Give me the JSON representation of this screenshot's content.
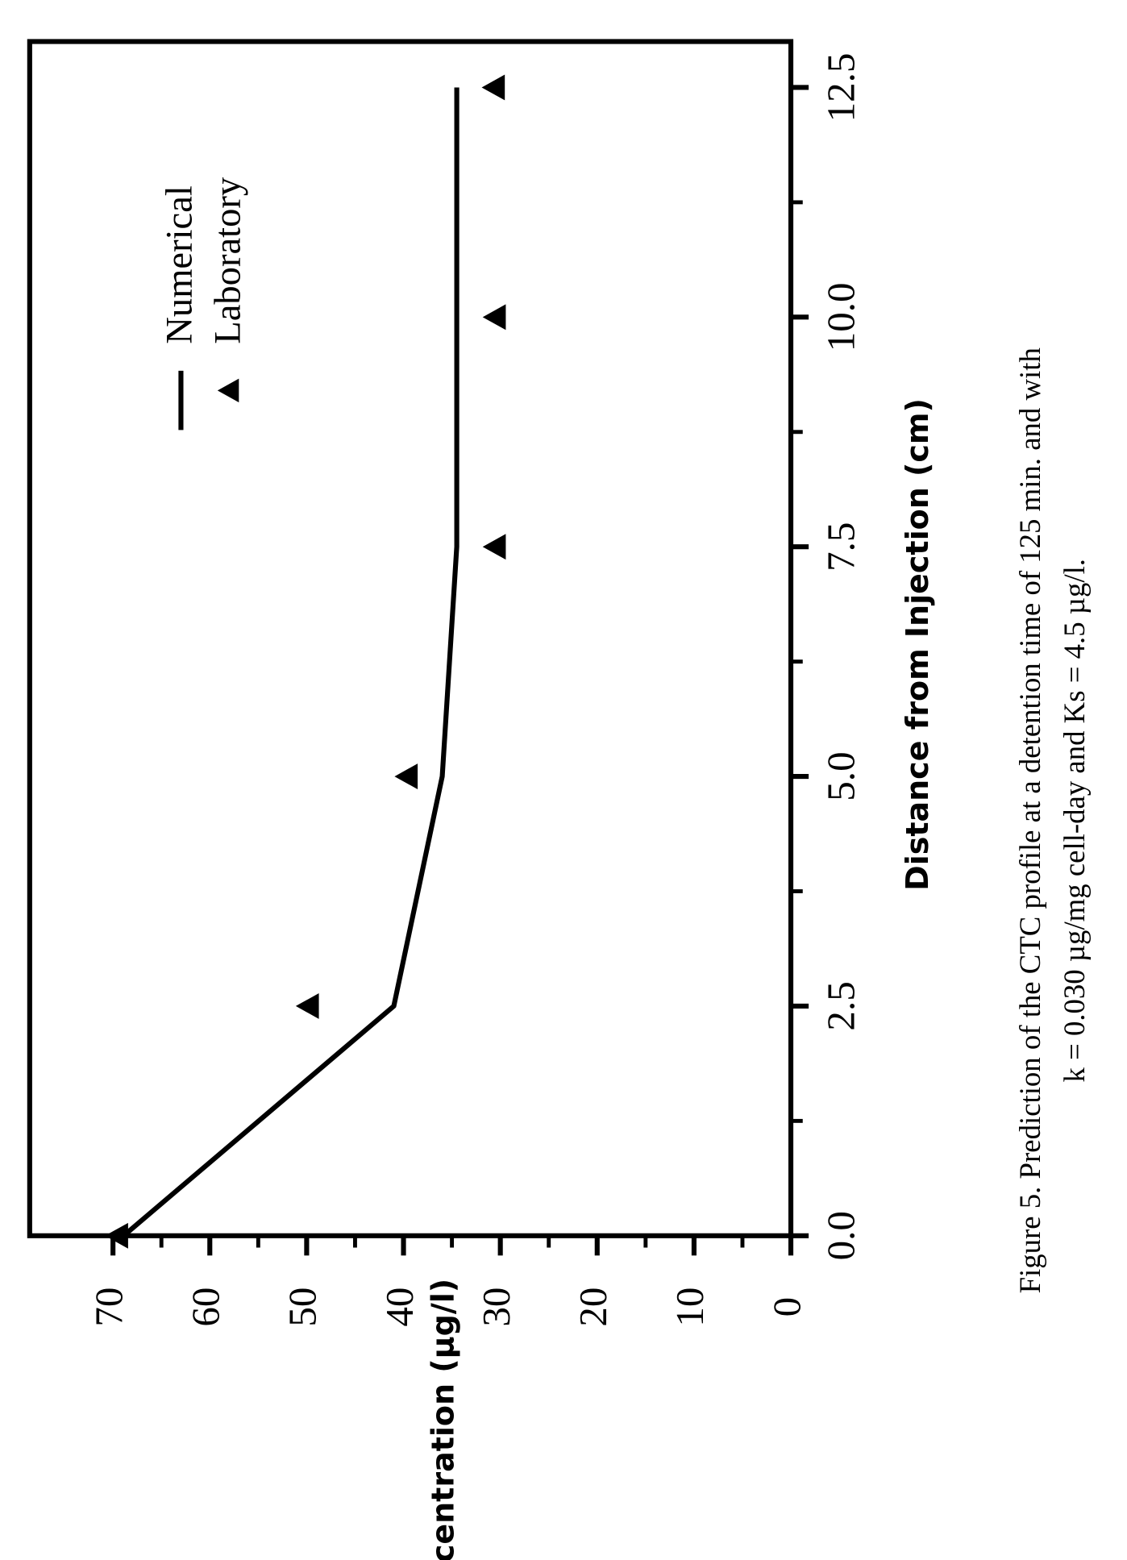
{
  "chart_data": {
    "type": "line",
    "xlabel": "Distance from Injection (cm)",
    "ylabel": "Concentration (µg/l)",
    "xlim": [
      0,
      13
    ],
    "ylim": [
      0,
      78.6
    ],
    "xticks": [
      {
        "value": 0,
        "label": "0.0"
      },
      {
        "value": 2.5,
        "label": "2.5"
      },
      {
        "value": 5,
        "label": "5.0"
      },
      {
        "value": 7.5,
        "label": "7.5"
      },
      {
        "value": 10,
        "label": "10.0"
      },
      {
        "value": 12.5,
        "label": "12.5"
      }
    ],
    "xticks_minor": [
      1.25,
      3.75,
      6.25,
      8.75,
      11.25
    ],
    "yticks": [
      0,
      10,
      20,
      30,
      40,
      50,
      60,
      70
    ],
    "yticks_minor": [
      5,
      15,
      25,
      35,
      45,
      55,
      65
    ],
    "series": [
      {
        "name": "Numerical",
        "color": "#000000",
        "mode": "line",
        "x": [
          0,
          2.5,
          5,
          7.5,
          12.5
        ],
        "values": [
          68.9,
          41,
          36,
          34.5,
          34.5
        ]
      },
      {
        "name": "Laboratory",
        "color": "#000000",
        "mode": "markers",
        "x": [
          0,
          2.5,
          5,
          7.5,
          10,
          12.5
        ],
        "values": [
          69.5,
          49.8,
          39.6,
          30.5,
          30.5,
          30.6
        ]
      }
    ],
    "caption": [
      "Figure 5.  Prediction of the CTC profile at a detention time of 125 min. and with",
      "k = 0.030 µg/mg cell-day and Ks = 4.5 µg/l."
    ]
  }
}
